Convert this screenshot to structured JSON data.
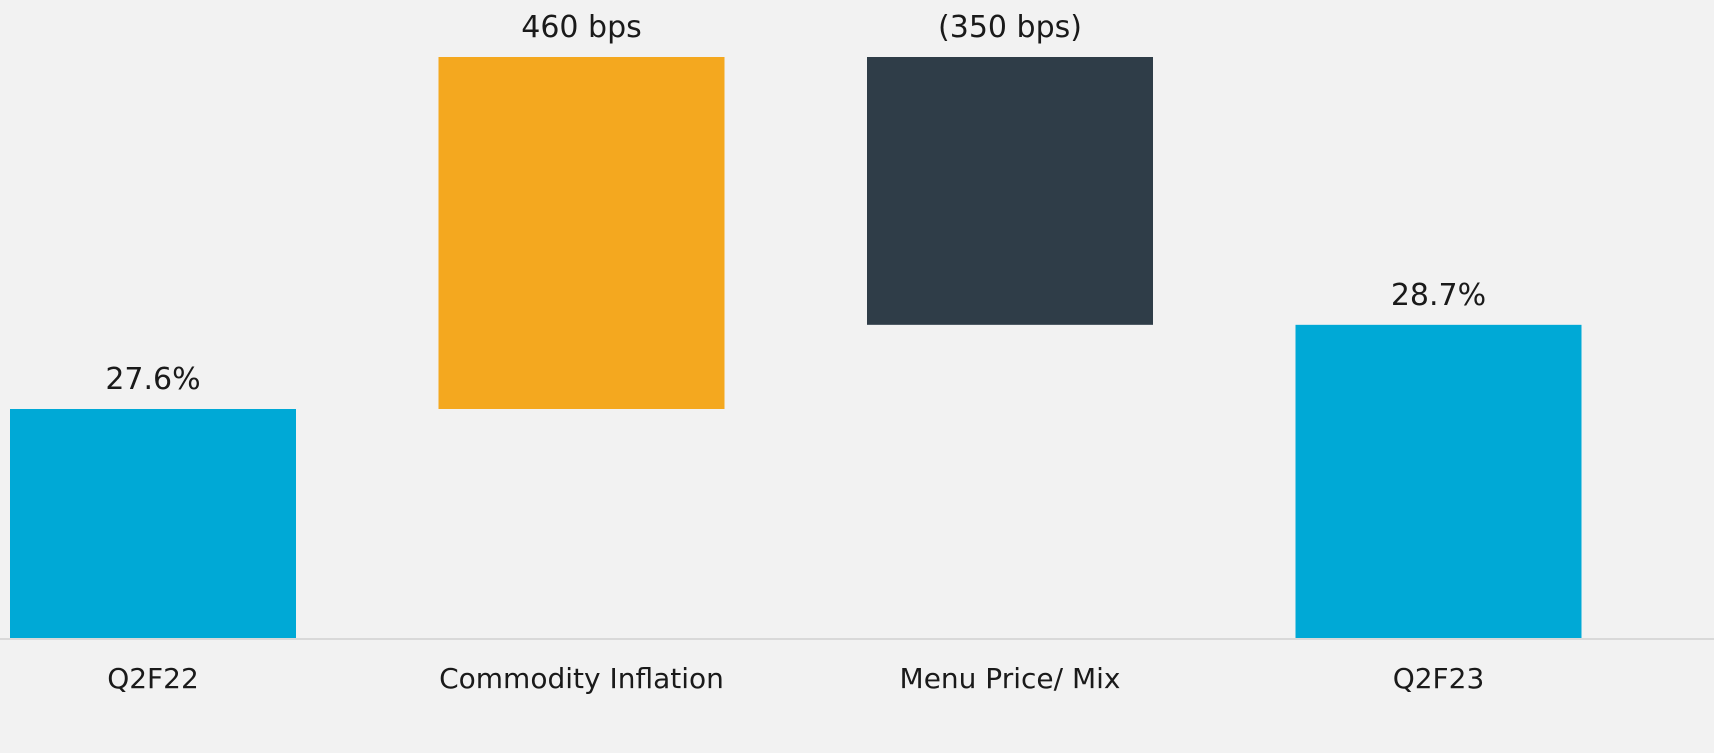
{
  "chart_data": {
    "type": "bar",
    "subtype": "waterfall",
    "categories": [
      "Q2F22",
      "Commodity Inflation",
      "Menu Price/ Mix",
      "Q2F23"
    ],
    "bars": [
      {
        "category": "Q2F22",
        "kind": "total",
        "value": 27.6,
        "label": "27.6%",
        "color": "#00a9d6"
      },
      {
        "category": "Commodity Inflation",
        "kind": "increase",
        "value": 4.6,
        "label": "460 bps",
        "color": "#f4a81f"
      },
      {
        "category": "Menu Price/ Mix",
        "kind": "decrease",
        "value": -3.5,
        "label": "(350 bps)",
        "color": "#2f3d48"
      },
      {
        "category": "Q2F23",
        "kind": "total",
        "value": 28.7,
        "label": "28.7%",
        "color": "#00a9d6"
      }
    ],
    "unit": "%",
    "baseline_color": "#d9d9d9",
    "grid": false,
    "legend": false
  }
}
